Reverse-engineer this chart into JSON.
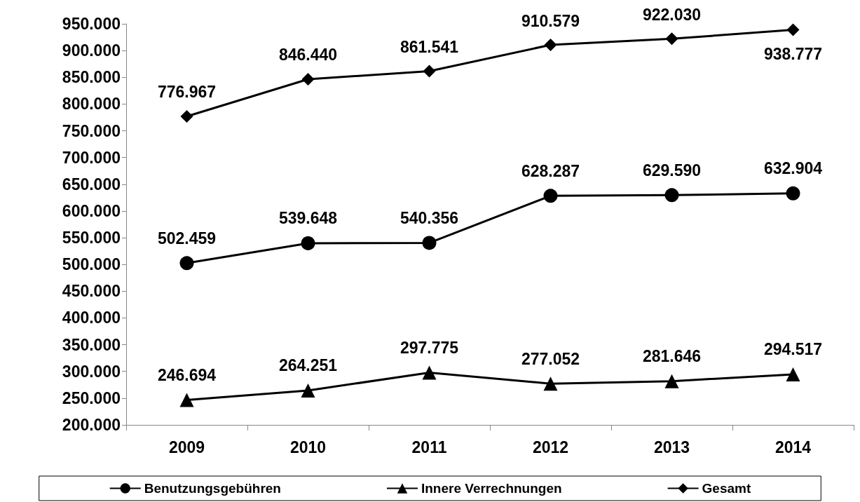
{
  "chart_data": {
    "type": "line",
    "categories": [
      "2009",
      "2010",
      "2011",
      "2012",
      "2013",
      "2014"
    ],
    "series": [
      {
        "name": "Benutzungsgebühren",
        "color": "#000000",
        "marker": "circle",
        "values": [
          502459,
          539648,
          540356,
          628287,
          629590,
          632904
        ],
        "value_labels": [
          "502.459",
          "539.648",
          "540.356",
          "628.287",
          "629.590",
          "632.904"
        ]
      },
      {
        "name": "Innere Verrechnungen",
        "color": "#000000",
        "marker": "triangle",
        "values": [
          246694,
          264251,
          297775,
          277052,
          281646,
          294517
        ],
        "value_labels": [
          "246.694",
          "264.251",
          "297.775",
          "277.052",
          "281.646",
          "294.517"
        ]
      },
      {
        "name": "Gesamt",
        "color": "#000000",
        "marker": "diamond",
        "values": [
          776967,
          846440,
          861541,
          910579,
          922030,
          938777
        ],
        "value_labels": [
          "776.967",
          "846.440",
          "861.541",
          "910.579",
          "922.030",
          "938.777"
        ]
      }
    ],
    "ylim": [
      200000,
      950000
    ],
    "yticks": [
      {
        "value": 200000,
        "label": "200.000"
      },
      {
        "value": 250000,
        "label": "250.000"
      },
      {
        "value": 300000,
        "label": "300.000"
      },
      {
        "value": 350000,
        "label": "350.000"
      },
      {
        "value": 400000,
        "label": "400.000"
      },
      {
        "value": 450000,
        "label": "450.000"
      },
      {
        "value": 500000,
        "label": "500.000"
      },
      {
        "value": 550000,
        "label": "550.000"
      },
      {
        "value": 600000,
        "label": "600.000"
      },
      {
        "value": 650000,
        "label": "650.000"
      },
      {
        "value": 700000,
        "label": "700.000"
      },
      {
        "value": 750000,
        "label": "750.000"
      },
      {
        "value": 800000,
        "label": "800.000"
      },
      {
        "value": 850000,
        "label": "850.000"
      },
      {
        "value": 900000,
        "label": "900.000"
      },
      {
        "value": 950000,
        "label": "950.000"
      }
    ],
    "grid": false,
    "legend": "bottom",
    "line_style": "solid"
  }
}
